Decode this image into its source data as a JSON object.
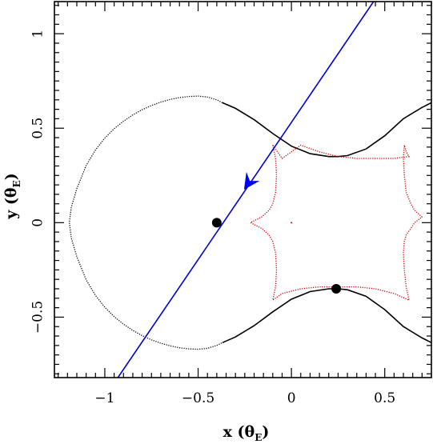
{
  "chart_data": {
    "type": "line",
    "title": "",
    "xlabel": "x (θ_E)",
    "ylabel": "y (θ_E)",
    "xlabel_main": "x (θ",
    "xlabel_sub": "E",
    "xlabel_close": ")",
    "ylabel_main": "y (θ",
    "ylabel_sub": "E",
    "ylabel_close": ")",
    "xlim": [
      -1.27,
      0.75
    ],
    "ylim": [
      -0.82,
      1.17
    ],
    "grid": false,
    "legend": "none",
    "x_ticks": [
      {
        "value": -1,
        "label": "−1"
      },
      {
        "value": -0.5,
        "label": "−0.5"
      },
      {
        "value": 0,
        "label": "0"
      },
      {
        "value": 0.5,
        "label": "0.5"
      }
    ],
    "y_ticks": [
      {
        "value": -0.5,
        "label": "−0.5"
      },
      {
        "value": 0,
        "label": "0"
      },
      {
        "value": 0.5,
        "label": "0.5"
      },
      {
        "value": 1,
        "label": "1"
      }
    ],
    "series": [
      {
        "role": "critical-curve-left",
        "color": "#000000",
        "style": "dotted",
        "x": [
          -0.37,
          -0.4,
          -0.45,
          -0.5,
          -0.55,
          -0.6,
          -0.65,
          -0.7,
          -0.75,
          -0.8,
          -0.85,
          -0.9,
          -0.95,
          -1.0,
          -1.05,
          -1.1,
          -1.15,
          -1.18,
          -1.19,
          -1.18,
          -1.15,
          -1.1,
          -1.05,
          -1.0,
          -0.95,
          -0.9,
          -0.85,
          -0.8,
          -0.75,
          -0.7,
          -0.65,
          -0.6,
          -0.55,
          -0.5,
          -0.45,
          -0.4,
          -0.37
        ],
        "y": [
          0.635,
          0.65,
          0.665,
          0.67,
          0.668,
          0.662,
          0.652,
          0.638,
          0.62,
          0.598,
          0.57,
          0.537,
          0.497,
          0.448,
          0.385,
          0.302,
          0.18,
          0.08,
          0.0,
          -0.08,
          -0.18,
          -0.302,
          -0.385,
          -0.448,
          -0.497,
          -0.537,
          -0.57,
          -0.598,
          -0.62,
          -0.638,
          -0.652,
          -0.662,
          -0.668,
          -0.67,
          -0.665,
          -0.65,
          -0.635
        ]
      },
      {
        "role": "critical-curve-upper",
        "color": "#000000",
        "style": "solid",
        "x": [
          -0.37,
          -0.3,
          -0.2,
          -0.1,
          0.0,
          0.1,
          0.2,
          0.25,
          0.3,
          0.4,
          0.5,
          0.6,
          0.7,
          0.75
        ],
        "y": [
          0.635,
          0.605,
          0.545,
          0.472,
          0.405,
          0.365,
          0.35,
          0.35,
          0.355,
          0.39,
          0.46,
          0.55,
          0.61,
          0.635
        ]
      },
      {
        "role": "critical-curve-lower",
        "color": "#000000",
        "style": "solid",
        "x": [
          -0.37,
          -0.3,
          -0.2,
          -0.1,
          0.0,
          0.1,
          0.2,
          0.25,
          0.3,
          0.4,
          0.5,
          0.6,
          0.7,
          0.75
        ],
        "y": [
          -0.635,
          -0.605,
          -0.545,
          -0.472,
          -0.405,
          -0.365,
          -0.35,
          -0.35,
          -0.355,
          -0.39,
          -0.46,
          -0.55,
          -0.61,
          -0.635
        ]
      },
      {
        "role": "caustic",
        "color": "#cc0000",
        "style": "dotted",
        "x": [
          -0.1,
          -0.085,
          -0.08,
          -0.085,
          -0.1,
          -0.12,
          -0.16,
          -0.22,
          -0.16,
          -0.12,
          -0.1,
          -0.085,
          -0.08,
          -0.085,
          -0.1,
          -0.05,
          0.05,
          0.15,
          0.25,
          0.35,
          0.45,
          0.55,
          0.63,
          0.615,
          0.605,
          0.6,
          0.605,
          0.615,
          0.64,
          0.66,
          0.7,
          0.66,
          0.64,
          0.615,
          0.605,
          0.6,
          0.605,
          0.615,
          0.63,
          0.55,
          0.45,
          0.35,
          0.25,
          0.15,
          0.05,
          -0.05,
          -0.1
        ],
        "y": [
          0.41,
          0.34,
          0.25,
          0.16,
          0.1,
          0.065,
          0.03,
          0.0,
          -0.03,
          -0.065,
          -0.1,
          -0.16,
          -0.25,
          -0.34,
          -0.41,
          -0.375,
          -0.35,
          -0.34,
          -0.34,
          -0.34,
          -0.35,
          -0.375,
          -0.41,
          -0.34,
          -0.25,
          -0.16,
          -0.1,
          -0.065,
          -0.03,
          0.0,
          0.03,
          0.065,
          0.1,
          0.16,
          0.25,
          0.34,
          0.41,
          0.375,
          0.35,
          0.34,
          0.34,
          0.34,
          0.35,
          0.375,
          0.41,
          0.34,
          0.41
        ]
      },
      {
        "role": "source-trajectory",
        "color": "#0000cc",
        "style": "solid",
        "x": [
          -0.93,
          0.44
        ],
        "y": [
          -0.82,
          1.17
        ]
      }
    ],
    "arrow": {
      "x": -0.23,
      "y": 0.21,
      "direction": "down-left",
      "color": "#0000ff"
    },
    "points": [
      {
        "role": "lens-1",
        "x": -0.4,
        "y": 0.0,
        "color": "#000000"
      },
      {
        "role": "lens-2",
        "x": 0.24,
        "y": -0.35,
        "color": "#000000"
      },
      {
        "role": "center-mark",
        "x": 0.0,
        "y": 0.0,
        "color": "#cc0000"
      }
    ]
  }
}
